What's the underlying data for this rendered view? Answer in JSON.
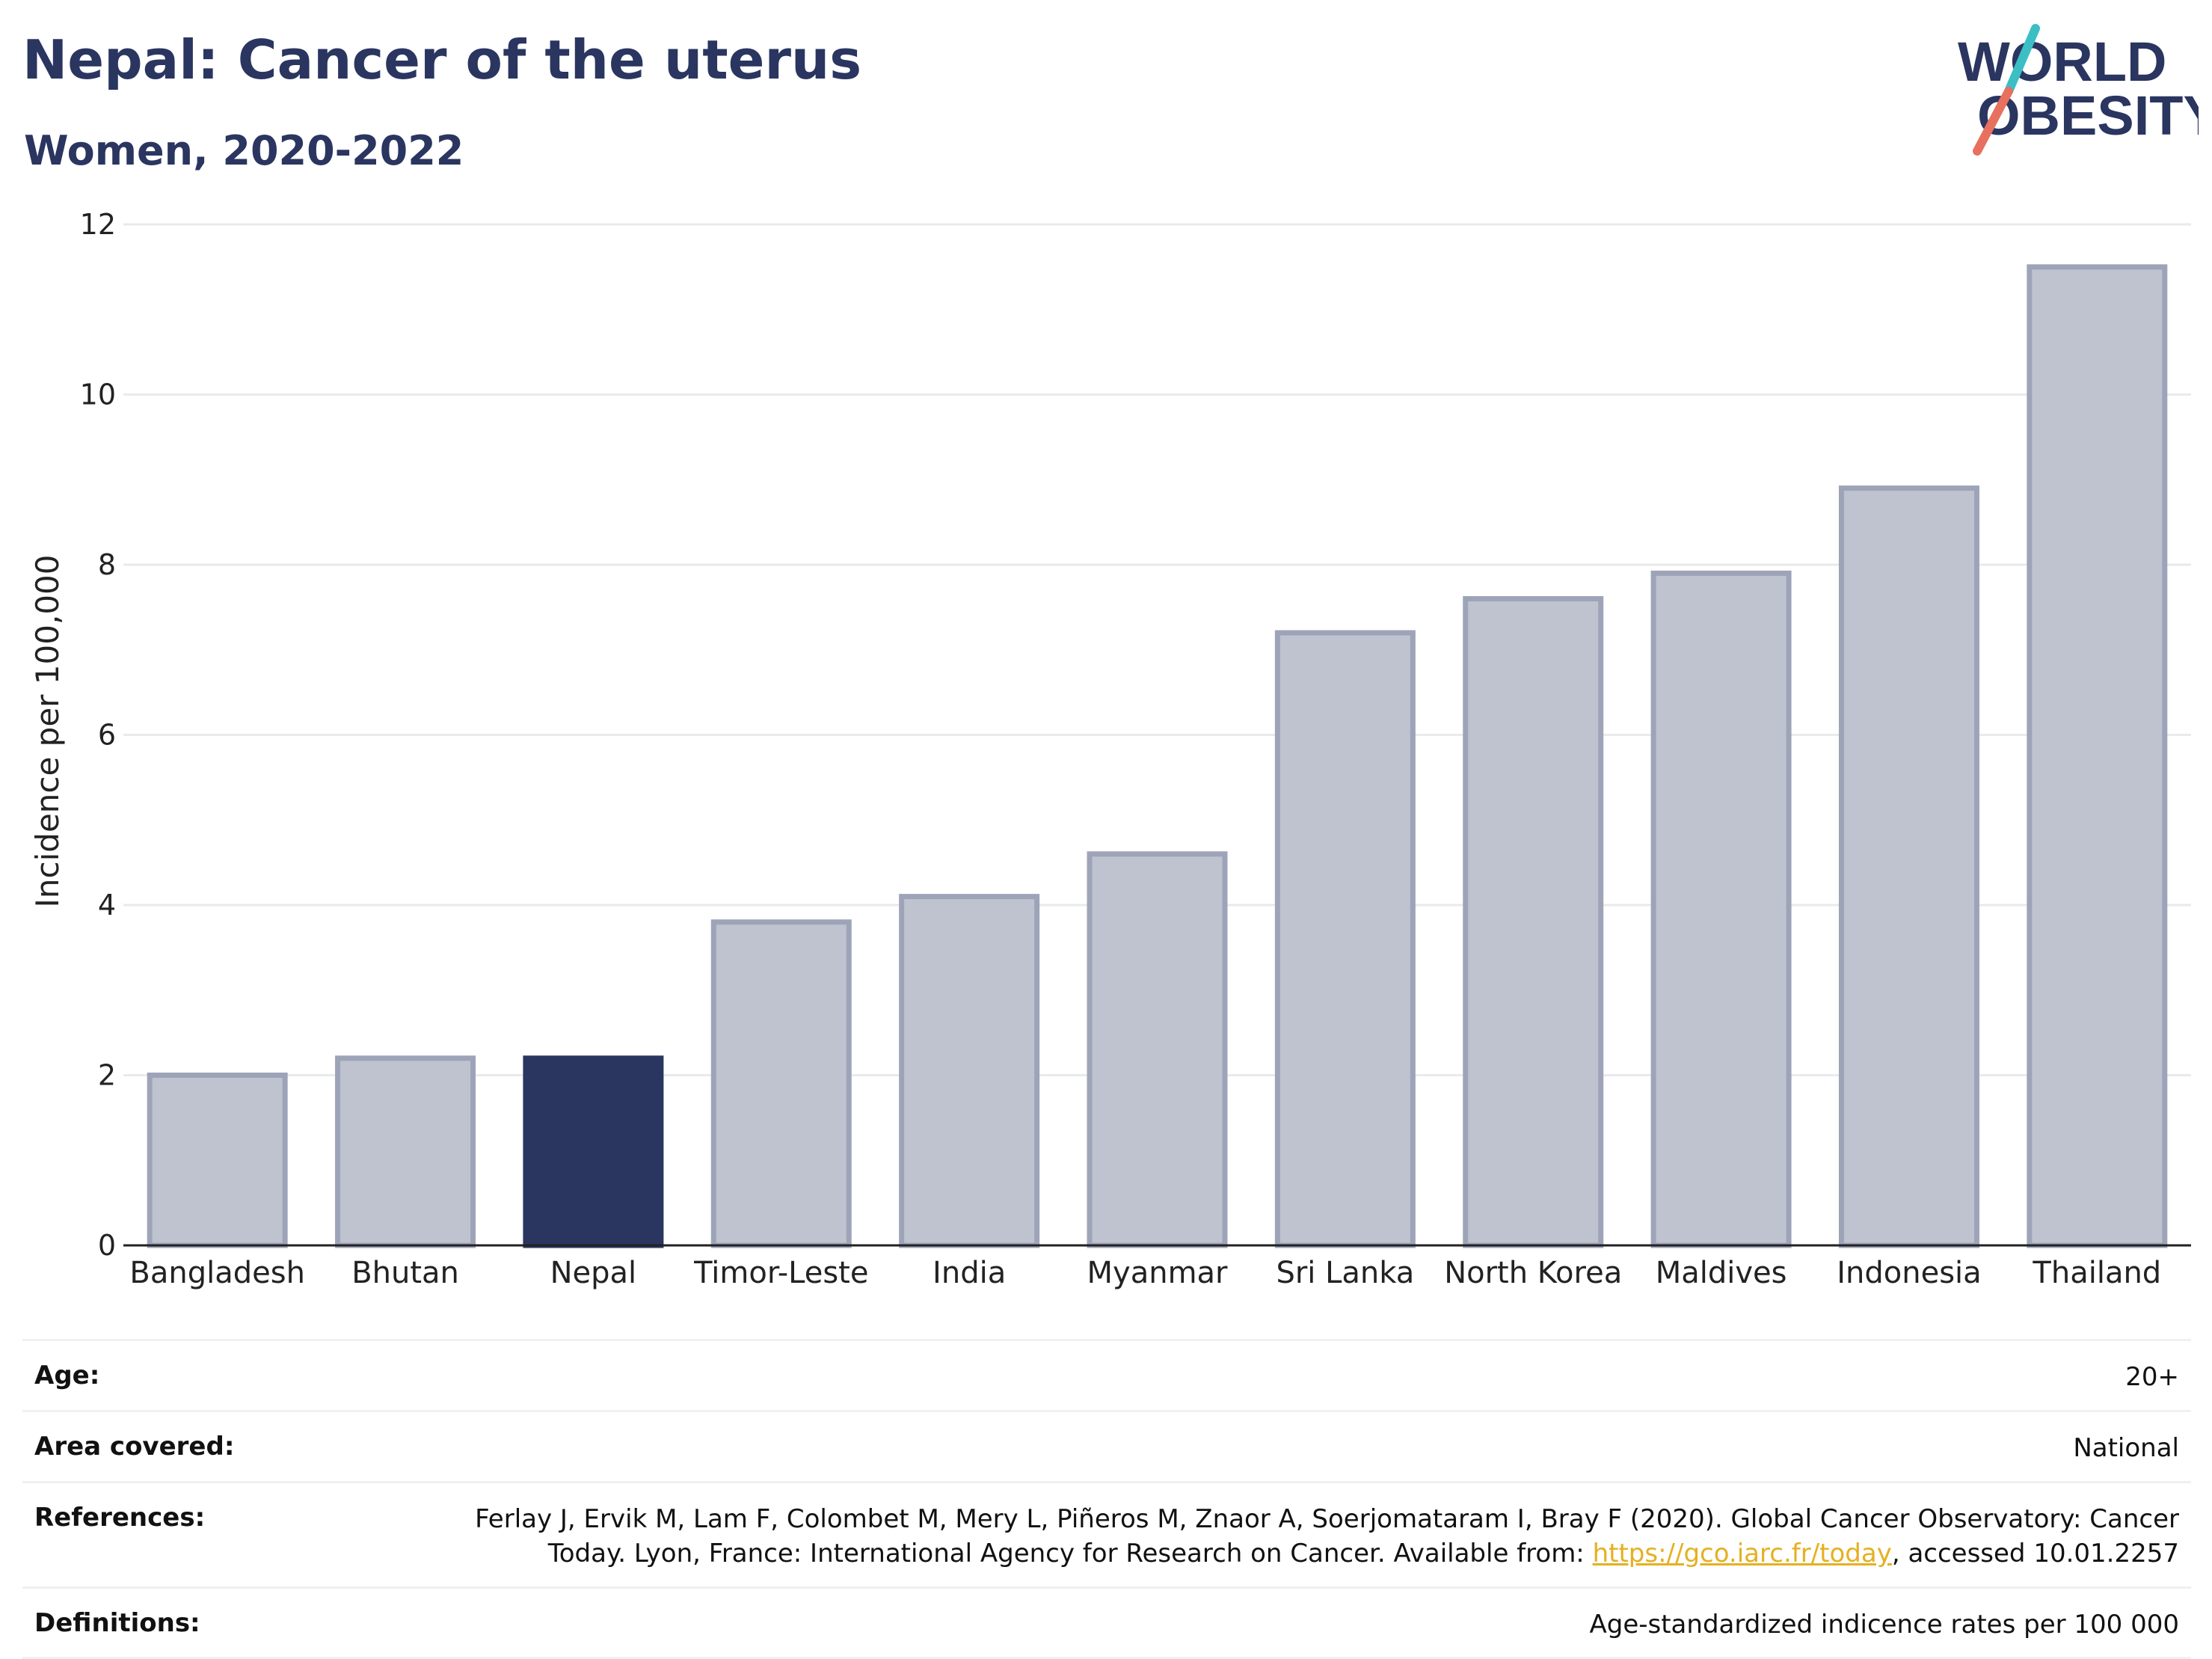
{
  "header": {
    "title": "Nepal: Cancer of the uterus",
    "subtitle": "Women, 2020-2022"
  },
  "logo": {
    "line1": "WORLD",
    "line2": "OBESITY",
    "colors": {
      "text": "#2a3560",
      "slash_top": "#3bbfc4",
      "slash_bottom": "#e8705f"
    }
  },
  "chart_data": {
    "type": "bar",
    "categories": [
      "Bangladesh",
      "Bhutan",
      "Nepal",
      "Timor-Leste",
      "India",
      "Myanmar",
      "Sri Lanka",
      "North Korea",
      "Maldives",
      "Indonesia",
      "Thailand"
    ],
    "values": [
      2.0,
      2.2,
      2.2,
      3.8,
      4.1,
      4.6,
      7.2,
      7.6,
      7.9,
      8.9,
      11.5
    ],
    "highlight": "Nepal",
    "ylabel": "Incidence per 100,000",
    "ylim": [
      0,
      12
    ],
    "yticks": [
      0,
      2,
      4,
      6,
      8,
      10,
      12
    ],
    "grid": true,
    "colors": {
      "bar": "#bfc3d0",
      "bar_border": "#9ea4b8",
      "highlight": "#2a3560",
      "grid": "#e8eaee",
      "axis": "#222222"
    }
  },
  "meta": {
    "age_label": "Age:",
    "age_value": "20+",
    "area_label": "Area covered:",
    "area_value": "National",
    "references_label": "References:",
    "references_text_1": "Ferlay J, Ervik M, Lam F, Colombet M, Mery L, Piñeros M, Znaor A, Soerjomataram I, Bray F (2020). Global Cancer Observatory: Cancer Today. Lyon, France: International Agency for Research on Cancer. Available from: ",
    "references_link": "https://gco.iarc.fr/today",
    "references_text_2": ", accessed 10.01.2257",
    "definitions_label": "Definitions:",
    "definitions_value": "Age-standardized indicence rates per 100 000"
  }
}
